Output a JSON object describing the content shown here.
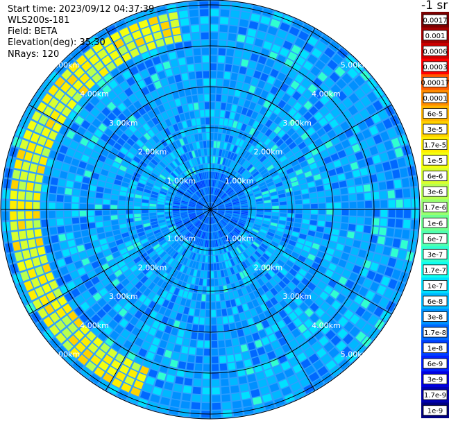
{
  "header": {
    "start_time": "Start time: 2023/09/12 04:37:39",
    "instrument": "WLS200s-181",
    "field": "Field: BETA",
    "elevation": "Elevation(deg): 35.30",
    "nrays": "NRays: 120"
  },
  "colorbar": {
    "title": "-1 sr",
    "labels": [
      "0.0017",
      "0.001",
      "0.0006",
      "0.0003",
      "0.00017",
      "0.0001",
      "6e-5",
      "3e-5",
      "1.7e-5",
      "1e-5",
      "6e-6",
      "3e-6",
      "1.7e-6",
      "1e-6",
      "6e-7",
      "3e-7",
      "1.7e-7",
      "1e-7",
      "6e-8",
      "3e-8",
      "1.7e-8",
      "1e-8",
      "6e-9",
      "3e-9",
      "1.7e-9",
      "1e-9"
    ],
    "colors": [
      "#7a0000",
      "#a30000",
      "#cc0000",
      "#ff0000",
      "#ff5a00",
      "#ff8c00",
      "#ffb400",
      "#ffd200",
      "#ffee00",
      "#f4ff10",
      "#d8ff30",
      "#b8ff50",
      "#98ff70",
      "#70ff90",
      "#50ffb0",
      "#30ffd0",
      "#10ffee",
      "#00e0ff",
      "#00b8ff",
      "#0090ff",
      "#0068ff",
      "#0040ff",
      "#0020ff",
      "#0000e0",
      "#0000b0",
      "#000080"
    ]
  },
  "chart_data": {
    "type": "heatmap",
    "projection": "polar PPI scan",
    "field": "BETA",
    "units": "-1 sr",
    "elevation_deg": 35.3,
    "n_rays": 120,
    "range_ring_labels": [
      "1.00km",
      "2.00km",
      "3.00km",
      "4.00km",
      "5.00km"
    ],
    "range_rings_km": [
      1,
      2,
      3,
      4,
      5
    ],
    "max_range_km": 5.3,
    "scale": "log",
    "vmin": 1e-09,
    "vmax": 0.0017,
    "dominant_value_range": [
      1.7e-08,
      1e-07
    ],
    "features": [
      {
        "description": "enhanced backscatter arc",
        "range_km": [
          4.2,
          4.9
        ],
        "azimuth_deg": [
          200,
          350
        ],
        "value_range": [
          1e-06,
          3e-05
        ]
      },
      {
        "description": "weak return near center",
        "range_km": [
          0,
          1.0
        ],
        "value_range": [
          1e-08,
          3e-08
        ]
      }
    ],
    "grid": true
  }
}
